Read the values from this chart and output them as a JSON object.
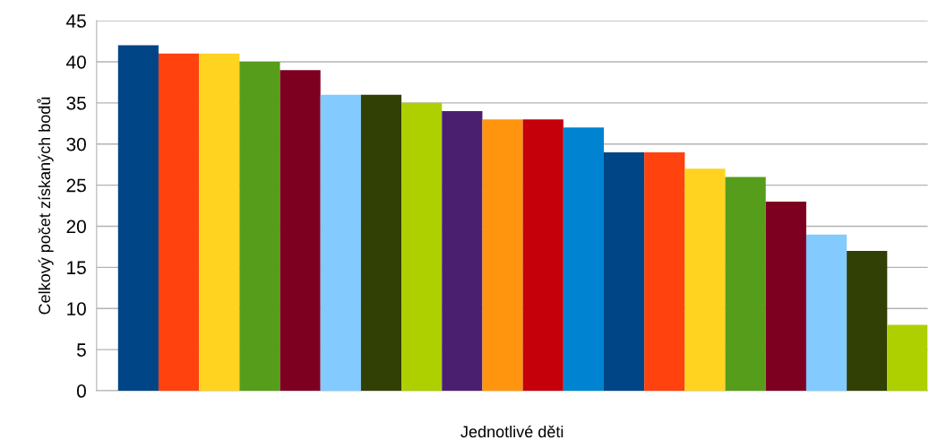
{
  "chart_data": {
    "type": "bar",
    "ylabel": "Celkový počet získaných bodů",
    "xlabel": "Jednotlivé děti",
    "categories": [
      null,
      null,
      null,
      null,
      null,
      null,
      null,
      null,
      null,
      null,
      null,
      null,
      null,
      null,
      null,
      null,
      null,
      null,
      null,
      null
    ],
    "values": [
      42,
      41,
      41,
      40,
      39,
      36,
      36,
      35,
      34,
      33,
      33,
      32,
      29,
      29,
      27,
      26,
      23,
      19,
      17,
      8
    ],
    "colors": [
      "#004586",
      "#ff420e",
      "#ffd320",
      "#579d1c",
      "#7e0021",
      "#83caff",
      "#314004",
      "#aecf00",
      "#4b1f6f",
      "#ff950e",
      "#c5000b",
      "#0084d1",
      "#004586",
      "#ff420e",
      "#ffd320",
      "#579d1c",
      "#7e0021",
      "#83caff",
      "#314004",
      "#aecf00"
    ],
    "ylim": [
      0,
      45
    ],
    "yticks": [
      0,
      5,
      10,
      15,
      20,
      25,
      30,
      35,
      40,
      45
    ],
    "grid": "y",
    "legend": false
  }
}
